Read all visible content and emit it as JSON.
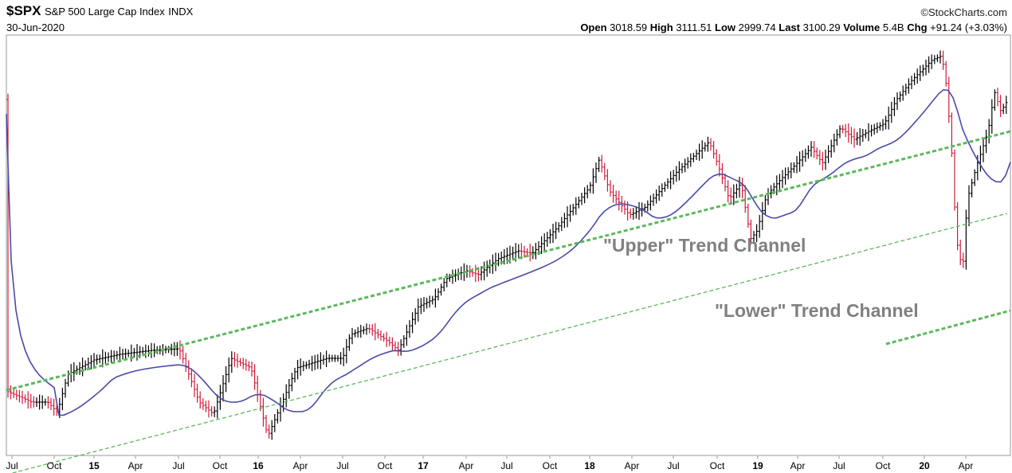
{
  "header": {
    "symbol": "$SPX",
    "name": "S&P 500 Large Cap Index",
    "exchange": "INDX",
    "date": "30-Jun-2020",
    "brand": "©StockCharts.com"
  },
  "quote": {
    "open_label": "Open",
    "open": "3018.59",
    "high_label": "High",
    "high": "3111.51",
    "low_label": "Low",
    "low": "2999.74",
    "last_label": "Last",
    "last": "3100.29",
    "volume_label": "Volume",
    "volume": "5.4B",
    "chg_label": "Chg",
    "chg": "+91.24 (+3.03%)"
  },
  "chart_data": {
    "type": "ohlc",
    "colors": {
      "up": "#000000",
      "down": "#d11a3a",
      "ma": "#4a4aa8",
      "trend": "#5cb85c",
      "annotation": "#808080"
    },
    "x_tick_labels": [
      "Jul",
      "Oct",
      "15",
      "Apr",
      "Jul",
      "Oct",
      "16",
      "Apr",
      "Jul",
      "Oct",
      "17",
      "Apr",
      "Jul",
      "Oct",
      "18",
      "Apr",
      "Jul",
      "Oct",
      "19",
      "Apr",
      "Jul",
      "Oct",
      "20",
      "Apr"
    ],
    "bold_ticks": [
      "15",
      "16",
      "17",
      "18",
      "19",
      "20"
    ],
    "x_range": [
      "2014-07",
      "2020-06"
    ],
    "annotations": [
      "\"Upper\" Trend  Channel",
      "\"Lower\" Trend Channel"
    ],
    "moving_average": "blue line",
    "trend_lines": [
      "upper channel (thick dashed green)",
      "lower channel (thin dashed green)",
      "lower channel continuation (thick dashed green)"
    ],
    "last_close": 3100.29
  }
}
